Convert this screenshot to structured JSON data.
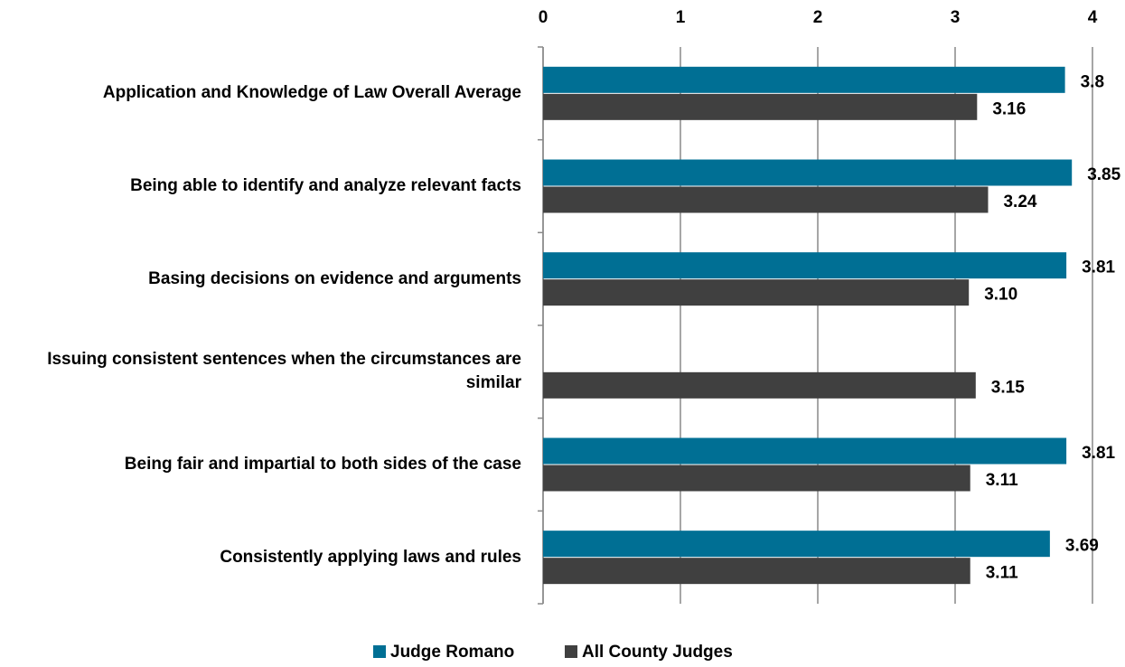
{
  "chart_data": {
    "type": "bar",
    "orientation": "horizontal",
    "categories": [
      "Application and Knowledge of Law Overall Average",
      "Being able to identify and analyze relevant facts",
      "Basing decisions on evidence and arguments",
      "Issuing consistent sentences when the circumstances are similar",
      "Being fair and impartial to both sides of the case",
      "Consistently applying laws and rules"
    ],
    "series": [
      {
        "name": "Judge Romano",
        "color": "#006f94",
        "values": [
          3.8,
          3.85,
          3.81,
          null,
          3.81,
          3.69
        ],
        "value_labels": [
          "3.8",
          "3.85",
          "3.81",
          null,
          "3.81",
          "3.69"
        ]
      },
      {
        "name": "All County Judges",
        "color": "#404040",
        "values": [
          3.16,
          3.24,
          3.1,
          3.15,
          3.11,
          3.11
        ],
        "value_labels": [
          "3.16",
          "3.24",
          "3.10",
          "3.15",
          "3.11",
          "3.11"
        ]
      }
    ],
    "xlim": [
      0,
      4
    ],
    "xticks": [
      0,
      1,
      2,
      3,
      4
    ],
    "grid": true,
    "legend": "bottom"
  }
}
